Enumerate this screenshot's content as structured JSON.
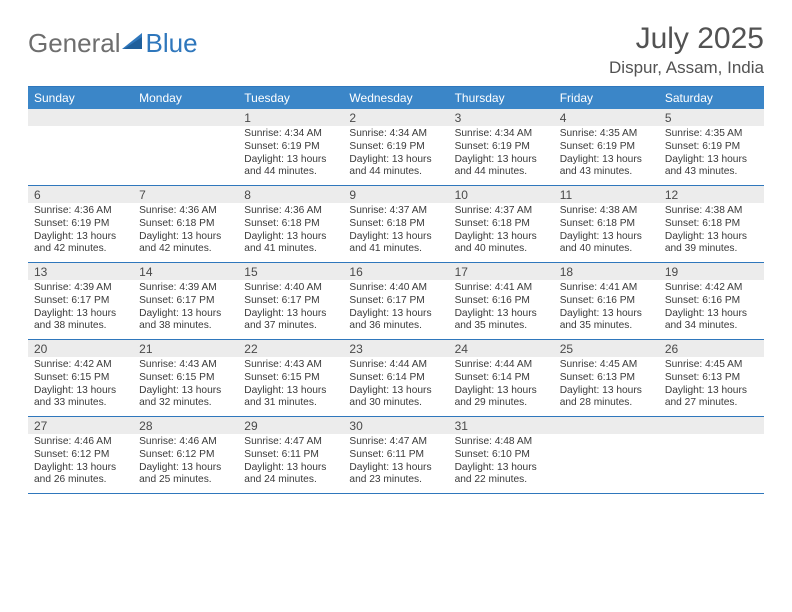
{
  "brand": {
    "part1": "General",
    "part2": "Blue"
  },
  "title": "July 2025",
  "location": "Dispur, Assam, India",
  "colors": {
    "header_bg": "#3b86c8",
    "border": "#2f77bc",
    "band": "#ececec",
    "text": "#3a3a3a",
    "title": "#525252"
  },
  "dow": [
    "Sunday",
    "Monday",
    "Tuesday",
    "Wednesday",
    "Thursday",
    "Friday",
    "Saturday"
  ],
  "weeks": [
    [
      null,
      null,
      {
        "n": "1",
        "sr": "4:34 AM",
        "ss": "6:19 PM",
        "dl": "13 hours and 44 minutes."
      },
      {
        "n": "2",
        "sr": "4:34 AM",
        "ss": "6:19 PM",
        "dl": "13 hours and 44 minutes."
      },
      {
        "n": "3",
        "sr": "4:34 AM",
        "ss": "6:19 PM",
        "dl": "13 hours and 44 minutes."
      },
      {
        "n": "4",
        "sr": "4:35 AM",
        "ss": "6:19 PM",
        "dl": "13 hours and 43 minutes."
      },
      {
        "n": "5",
        "sr": "4:35 AM",
        "ss": "6:19 PM",
        "dl": "13 hours and 43 minutes."
      }
    ],
    [
      {
        "n": "6",
        "sr": "4:36 AM",
        "ss": "6:19 PM",
        "dl": "13 hours and 42 minutes."
      },
      {
        "n": "7",
        "sr": "4:36 AM",
        "ss": "6:18 PM",
        "dl": "13 hours and 42 minutes."
      },
      {
        "n": "8",
        "sr": "4:36 AM",
        "ss": "6:18 PM",
        "dl": "13 hours and 41 minutes."
      },
      {
        "n": "9",
        "sr": "4:37 AM",
        "ss": "6:18 PM",
        "dl": "13 hours and 41 minutes."
      },
      {
        "n": "10",
        "sr": "4:37 AM",
        "ss": "6:18 PM",
        "dl": "13 hours and 40 minutes."
      },
      {
        "n": "11",
        "sr": "4:38 AM",
        "ss": "6:18 PM",
        "dl": "13 hours and 40 minutes."
      },
      {
        "n": "12",
        "sr": "4:38 AM",
        "ss": "6:18 PM",
        "dl": "13 hours and 39 minutes."
      }
    ],
    [
      {
        "n": "13",
        "sr": "4:39 AM",
        "ss": "6:17 PM",
        "dl": "13 hours and 38 minutes."
      },
      {
        "n": "14",
        "sr": "4:39 AM",
        "ss": "6:17 PM",
        "dl": "13 hours and 38 minutes."
      },
      {
        "n": "15",
        "sr": "4:40 AM",
        "ss": "6:17 PM",
        "dl": "13 hours and 37 minutes."
      },
      {
        "n": "16",
        "sr": "4:40 AM",
        "ss": "6:17 PM",
        "dl": "13 hours and 36 minutes."
      },
      {
        "n": "17",
        "sr": "4:41 AM",
        "ss": "6:16 PM",
        "dl": "13 hours and 35 minutes."
      },
      {
        "n": "18",
        "sr": "4:41 AM",
        "ss": "6:16 PM",
        "dl": "13 hours and 35 minutes."
      },
      {
        "n": "19",
        "sr": "4:42 AM",
        "ss": "6:16 PM",
        "dl": "13 hours and 34 minutes."
      }
    ],
    [
      {
        "n": "20",
        "sr": "4:42 AM",
        "ss": "6:15 PM",
        "dl": "13 hours and 33 minutes."
      },
      {
        "n": "21",
        "sr": "4:43 AM",
        "ss": "6:15 PM",
        "dl": "13 hours and 32 minutes."
      },
      {
        "n": "22",
        "sr": "4:43 AM",
        "ss": "6:15 PM",
        "dl": "13 hours and 31 minutes."
      },
      {
        "n": "23",
        "sr": "4:44 AM",
        "ss": "6:14 PM",
        "dl": "13 hours and 30 minutes."
      },
      {
        "n": "24",
        "sr": "4:44 AM",
        "ss": "6:14 PM",
        "dl": "13 hours and 29 minutes."
      },
      {
        "n": "25",
        "sr": "4:45 AM",
        "ss": "6:13 PM",
        "dl": "13 hours and 28 minutes."
      },
      {
        "n": "26",
        "sr": "4:45 AM",
        "ss": "6:13 PM",
        "dl": "13 hours and 27 minutes."
      }
    ],
    [
      {
        "n": "27",
        "sr": "4:46 AM",
        "ss": "6:12 PM",
        "dl": "13 hours and 26 minutes."
      },
      {
        "n": "28",
        "sr": "4:46 AM",
        "ss": "6:12 PM",
        "dl": "13 hours and 25 minutes."
      },
      {
        "n": "29",
        "sr": "4:47 AM",
        "ss": "6:11 PM",
        "dl": "13 hours and 24 minutes."
      },
      {
        "n": "30",
        "sr": "4:47 AM",
        "ss": "6:11 PM",
        "dl": "13 hours and 23 minutes."
      },
      {
        "n": "31",
        "sr": "4:48 AM",
        "ss": "6:10 PM",
        "dl": "13 hours and 22 minutes."
      },
      null,
      null
    ]
  ],
  "labels": {
    "sunrise": "Sunrise:",
    "sunset": "Sunset:",
    "daylight": "Daylight:"
  }
}
